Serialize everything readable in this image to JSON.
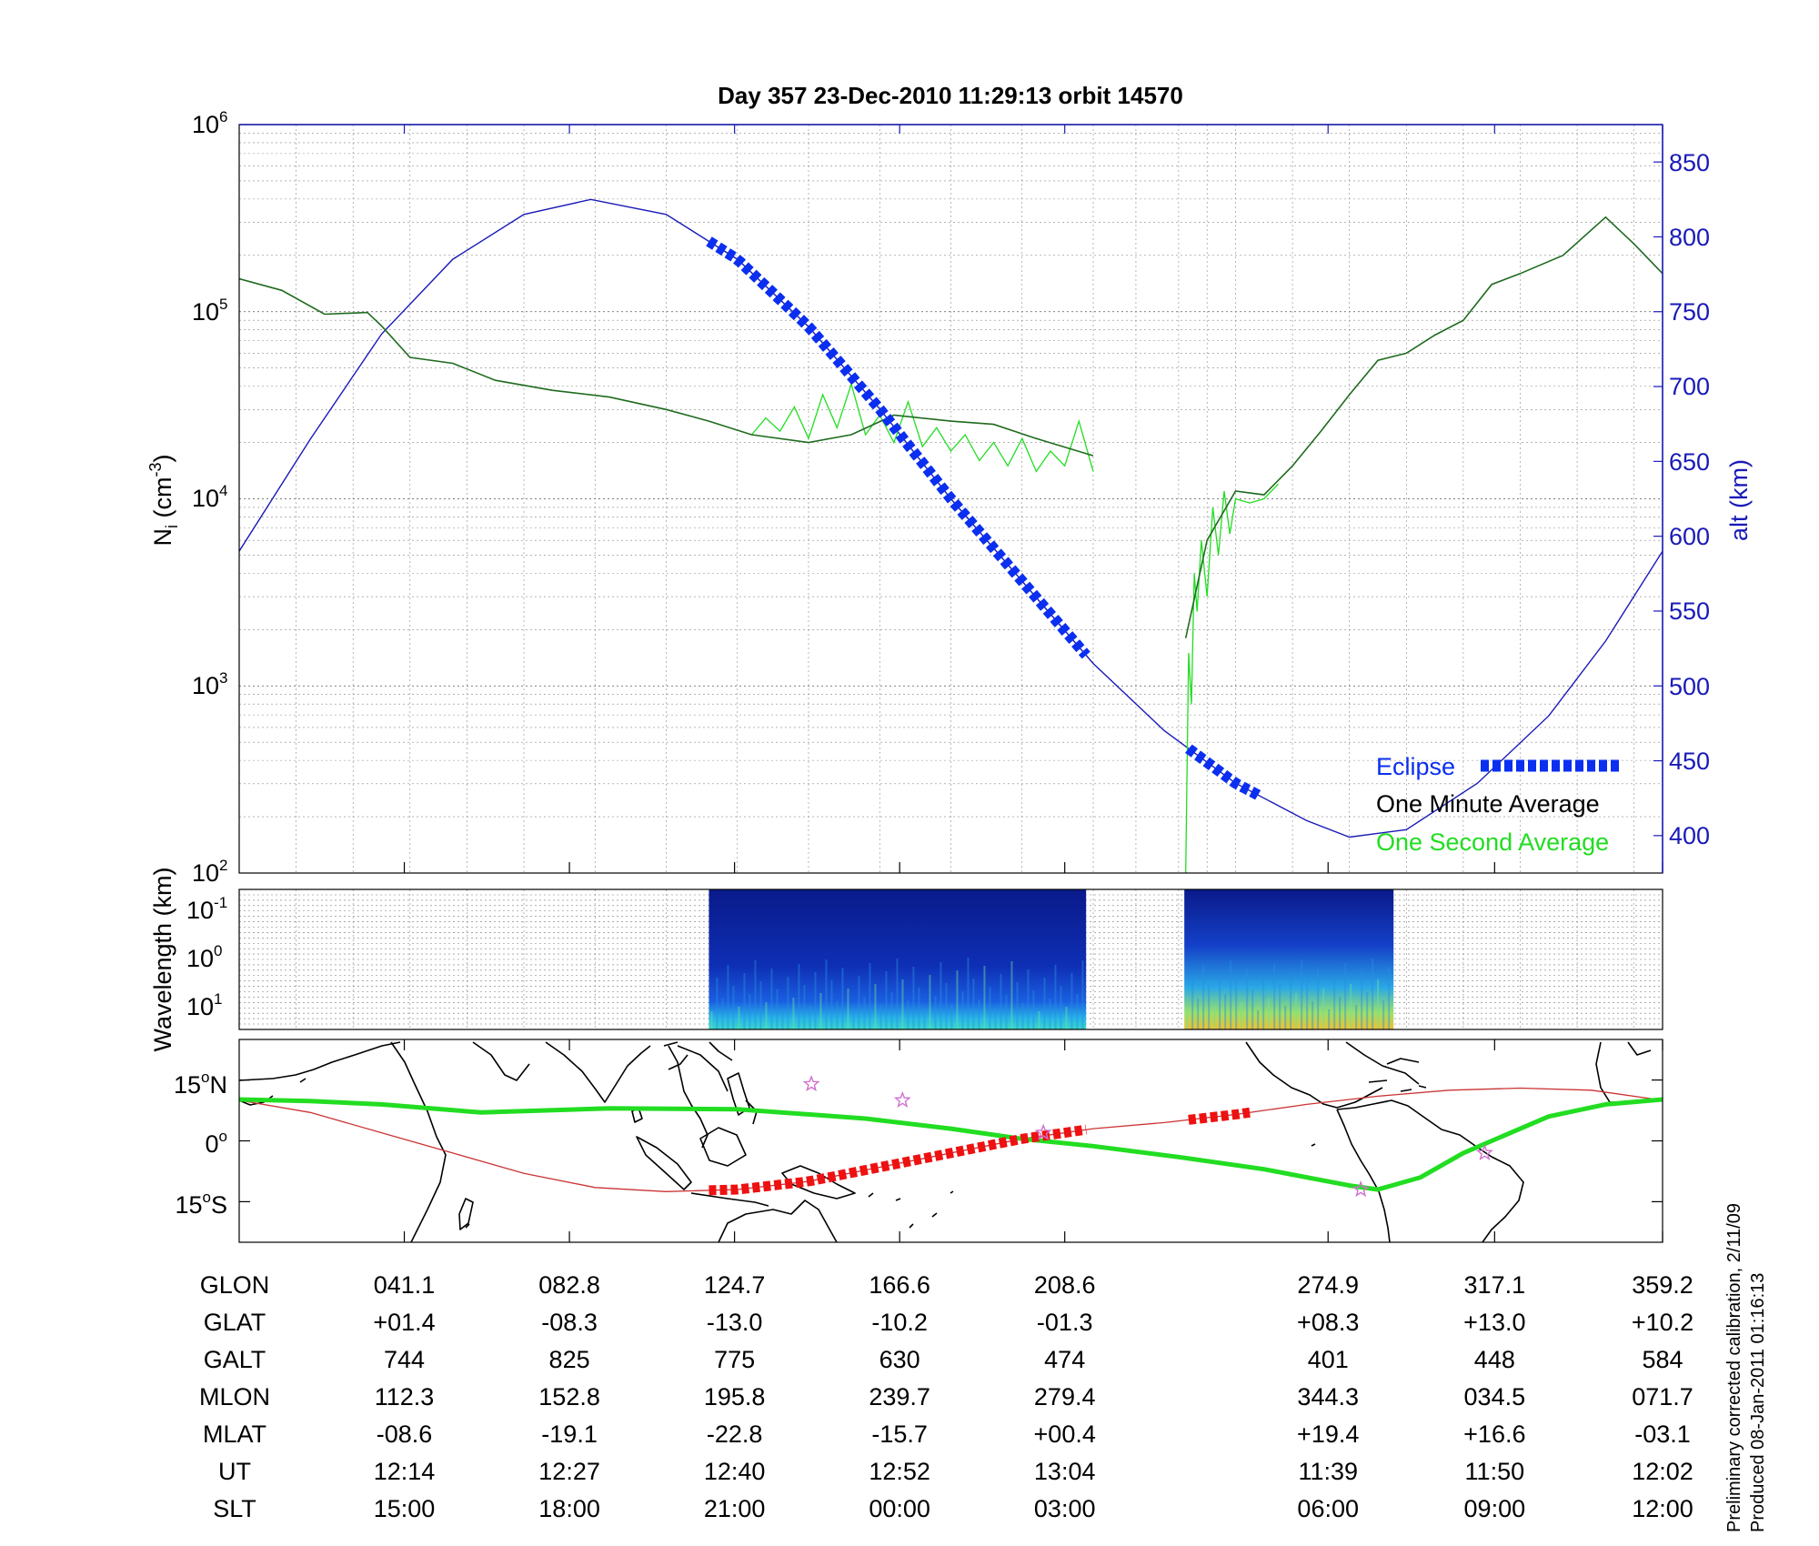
{
  "title": "Day 357  23-Dec-2010 11:29:13   orbit 14570",
  "colors": {
    "density_minute": "#1f6b1f",
    "density_second": "#22dd22",
    "altitude": "#1a1ab8",
    "eclipse": "#0a2ff0",
    "ground_track": "#22dd22",
    "magnetic_equator": "#cc3333",
    "eclipse_track": "#ee1111",
    "stars": "#d070d0"
  },
  "chart_data": [
    {
      "type": "line",
      "name": "density-panel",
      "x": [
        0,
        0.04,
        0.08,
        0.12,
        0.16,
        0.2,
        0.25,
        0.3,
        0.35,
        0.4,
        0.45,
        0.5,
        0.55,
        0.6,
        0.63,
        0.66,
        0.68,
        0.7,
        0.74,
        0.78,
        0.82,
        0.86,
        0.9,
        0.94,
        0.98,
        1.0
      ],
      "ylabel": "N",
      "ylabel_sub": "i",
      "ylabel_unit": "(cm",
      "ylabel_sup": "-3",
      "ylabel_close": ")",
      "y_scale": "log",
      "ylim": [
        100,
        1000000
      ],
      "y_ticks": [
        {
          "base": "10",
          "exp": "2"
        },
        {
          "base": "10",
          "exp": "3"
        },
        {
          "base": "10",
          "exp": "4"
        },
        {
          "base": "10",
          "exp": "5"
        },
        {
          "base": "10",
          "exp": "6"
        }
      ],
      "y2label": "alt (km)",
      "y2lim": [
        375,
        875
      ],
      "y2_ticks": [
        "400",
        "450",
        "500",
        "550",
        "600",
        "650",
        "700",
        "750",
        "800",
        "850"
      ],
      "grid": true,
      "series": [
        {
          "name": "One Minute Average",
          "segments": [
            {
              "x": [
                0.0,
                0.03,
                0.06,
                0.09,
                0.1,
                0.12,
                0.15,
                0.18,
                0.22,
                0.26,
                0.3,
                0.33,
                0.36,
                0.4,
                0.43,
                0.46,
                0.5,
                0.53,
                0.56,
                0.6
              ],
              "y": [
                150000,
                130000,
                97000,
                99000,
                84000,
                57000,
                53000,
                43000,
                38000,
                35000,
                30000,
                26000,
                22000,
                20000,
                22000,
                28000,
                26000,
                25000,
                21000,
                17000
              ]
            },
            {
              "x": [
                0.665,
                0.68,
                0.7,
                0.72,
                0.74,
                0.76,
                0.78,
                0.8,
                0.82,
                0.84,
                0.86,
                0.88,
                0.9,
                0.93,
                0.96,
                0.98,
                1.0
              ],
              "y": [
                1800,
                6000,
                11000,
                10500,
                15000,
                23000,
                36000,
                55000,
                60000,
                75000,
                90000,
                140000,
                160000,
                200000,
                320000,
                230000,
                160000
              ]
            }
          ]
        },
        {
          "name": "One Second Average",
          "segments": [
            {
              "x": [
                0.36,
                0.37,
                0.38,
                0.39,
                0.4,
                0.41,
                0.42,
                0.43,
                0.44,
                0.45,
                0.46,
                0.47,
                0.48,
                0.49,
                0.5,
                0.51,
                0.52,
                0.53,
                0.54,
                0.55,
                0.56,
                0.57,
                0.58,
                0.59,
                0.6
              ],
              "y": [
                22000,
                27000,
                23000,
                31000,
                21000,
                36000,
                24000,
                41000,
                22000,
                28000,
                20000,
                33000,
                19000,
                24000,
                18000,
                22000,
                16000,
                20000,
                15000,
                21000,
                14000,
                18000,
                15000,
                26000,
                14000
              ]
            },
            {
              "x": [
                0.665,
                0.667,
                0.669,
                0.671,
                0.673,
                0.676,
                0.68,
                0.684,
                0.688,
                0.692,
                0.696,
                0.7,
                0.71,
                0.72,
                0.73
              ],
              "y": [
                100,
                1500,
                800,
                4000,
                2500,
                6000,
                3000,
                9000,
                5000,
                11000,
                6500,
                10000,
                9500,
                10000,
                12000
              ]
            }
          ]
        },
        {
          "name": "Altitude",
          "axis": "right",
          "x": [
            0,
            0.05,
            0.1,
            0.15,
            0.2,
            0.247,
            0.3,
            0.35,
            0.4,
            0.45,
            0.5,
            0.55,
            0.6,
            0.65,
            0.7,
            0.75,
            0.78,
            0.82,
            0.87,
            0.92,
            0.96,
            1.0
          ],
          "y": [
            590,
            665,
            735,
            785,
            815,
            825,
            815,
            785,
            740,
            685,
            625,
            570,
            515,
            470,
            435,
            410,
            399,
            404,
            435,
            480,
            530,
            590
          ]
        },
        {
          "name": "Eclipse",
          "segments": [
            {
              "x0": 0.33,
              "x1": 0.595
            },
            {
              "x0": 0.667,
              "x1": 0.716
            }
          ]
        }
      ],
      "legend": {
        "position": "bottom-right",
        "entries": [
          "Eclipse",
          "One Minute Average",
          "One Second Average"
        ]
      }
    },
    {
      "type": "heatmap",
      "name": "wavelength-spectrogram",
      "ylabel": "Wavelength (km)",
      "y_scale": "log",
      "y_ticks": [
        {
          "base": "10",
          "exp": "-1"
        },
        {
          "base": "10",
          "exp": "0"
        },
        {
          "base": "10",
          "exp": "1"
        }
      ],
      "blocks": [
        {
          "x0": 0.33,
          "x1": 0.595
        },
        {
          "x0": 0.664,
          "x1": 0.811
        }
      ]
    },
    {
      "type": "map",
      "name": "ground-track-map",
      "lon_range": [
        0,
        360
      ],
      "lat_range": [
        -25,
        25
      ],
      "y_ticks": [
        {
          "value": "15",
          "hemi": "N"
        },
        {
          "value": "0",
          "hemi": ""
        },
        {
          "value": "15",
          "hemi": "S"
        }
      ],
      "ground_track": {
        "x": [
          0.0,
          0.05,
          0.1,
          0.17,
          0.26,
          0.35,
          0.44,
          0.5,
          0.55,
          0.6,
          0.66,
          0.72,
          0.78,
          0.8,
          0.83,
          0.86,
          0.92,
          0.96,
          1.0
        ],
        "lat": [
          10.2,
          9.8,
          9.0,
          7.0,
          8.0,
          7.8,
          5.5,
          3.0,
          0.5,
          -1.3,
          -4.0,
          -7.0,
          -11.0,
          -12.0,
          -9.0,
          -3.0,
          6.0,
          9.0,
          10.2
        ]
      },
      "magnetic_equator": {
        "x": [
          0.0,
          0.05,
          0.1,
          0.15,
          0.2,
          0.25,
          0.3,
          0.35,
          0.4,
          0.45,
          0.5,
          0.55,
          0.6,
          0.65,
          0.7,
          0.75,
          0.8,
          0.85,
          0.9,
          0.95,
          1.0
        ],
        "lat": [
          10.0,
          7.0,
          2.0,
          -3.0,
          -8.0,
          -11.5,
          -12.5,
          -12.0,
          -10.0,
          -6.5,
          -3.0,
          0.5,
          3.0,
          4.5,
          6.5,
          9.0,
          11.0,
          12.5,
          13.0,
          12.5,
          10.0
        ]
      },
      "eclipse_track": [
        {
          "x0": 0.33,
          "x1": 0.595
        },
        {
          "x0": 0.667,
          "x1": 0.71
        }
      ],
      "stars": [
        {
          "x": 0.402,
          "lat": 14.0
        },
        {
          "x": 0.466,
          "lat": 10.0
        },
        {
          "x": 0.565,
          "lat": 2.0
        },
        {
          "x": 0.788,
          "lat": -12.0
        },
        {
          "x": 0.875,
          "lat": -3.0
        }
      ]
    }
  ],
  "table": {
    "columns_x": [
      0.116,
      0.232,
      0.348,
      0.464,
      0.58,
      0.765,
      0.882,
      1.0
    ],
    "rows": [
      {
        "label": "GLON",
        "values": [
          "041.1",
          "082.8",
          "124.7",
          "166.6",
          "208.6",
          "274.9",
          "317.1",
          "359.2"
        ]
      },
      {
        "label": "GLAT",
        "values": [
          "+01.4",
          "-08.3",
          "-13.0",
          "-10.2",
          "-01.3",
          "+08.3",
          "+13.0",
          "+10.2"
        ]
      },
      {
        "label": "GALT",
        "values": [
          "744",
          "825",
          "775",
          "630",
          "474",
          "401",
          "448",
          "584"
        ]
      },
      {
        "label": "MLON",
        "values": [
          "112.3",
          "152.8",
          "195.8",
          "239.7",
          "279.4",
          "344.3",
          "034.5",
          "071.7"
        ]
      },
      {
        "label": "MLAT",
        "values": [
          "-08.6",
          "-19.1",
          "-22.8",
          "-15.7",
          "+00.4",
          "+19.4",
          "+16.6",
          "-03.1"
        ]
      },
      {
        "label": "UT",
        "values": [
          "12:14",
          "12:27",
          "12:40",
          "12:52",
          "13:04",
          "11:39",
          "11:50",
          "12:02"
        ]
      },
      {
        "label": "SLT",
        "values": [
          "15:00",
          "18:00",
          "21:00",
          "00:00",
          "03:00",
          "06:00",
          "09:00",
          "12:00"
        ]
      }
    ]
  },
  "footnote": {
    "line1": "Preliminary corrected calibration, 2/11/09",
    "line2": "Produced 08-Jan-2011 01:16:13"
  }
}
